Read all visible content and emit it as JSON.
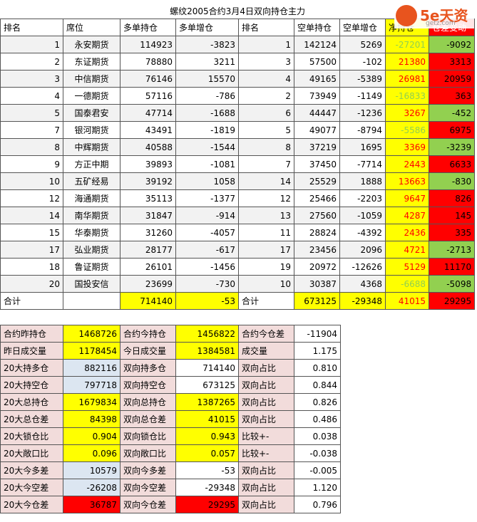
{
  "title": "螺纹2005合约3月4日双向持仓主力",
  "logo": {
    "brand": "5e天资",
    "site": "getz.com"
  },
  "header": [
    "排名",
    "席位",
    "多单持仓",
    "多单增仓",
    "排名",
    "空单持仓",
    "空单增仓",
    "净持仓",
    "仓差变动"
  ],
  "rows": [
    [
      "1",
      "永安期货",
      "114923",
      "-3823",
      "1",
      "142124",
      "5269",
      "-27201",
      "-9092"
    ],
    [
      "2",
      "东证期货",
      "78880",
      "3211",
      "3",
      "57500",
      "-102",
      "21380",
      "3313"
    ],
    [
      "3",
      "中信期货",
      "76146",
      "15570",
      "4",
      "49165",
      "-5389",
      "26981",
      "20959"
    ],
    [
      "4",
      "一德期货",
      "57116",
      "-786",
      "2",
      "73949",
      "-1149",
      "-16833",
      "363"
    ],
    [
      "5",
      "国泰君安",
      "47714",
      "-1688",
      "6",
      "44447",
      "-1236",
      "3267",
      "-452"
    ],
    [
      "7",
      "银河期货",
      "43491",
      "-1819",
      "5",
      "49077",
      "-8794",
      "-5586",
      "6975"
    ],
    [
      "8",
      "中辉期货",
      "40588",
      "-1544",
      "8",
      "37219",
      "1695",
      "3369",
      "-3239"
    ],
    [
      "9",
      "方正中期",
      "39893",
      "-1081",
      "7",
      "37450",
      "-7714",
      "2443",
      "6633"
    ],
    [
      "10",
      "五矿经易",
      "39192",
      "1058",
      "14",
      "25529",
      "1888",
      "13663",
      "-830"
    ],
    [
      "12",
      "海通期货",
      "35113",
      "-1377",
      "12",
      "25466",
      "-2203",
      "9647",
      "826"
    ],
    [
      "14",
      "南华期货",
      "31847",
      "-914",
      "13",
      "27560",
      "-1059",
      "4287",
      "145"
    ],
    [
      "15",
      "华泰期货",
      "31260",
      "-4057",
      "11",
      "28824",
      "-4392",
      "2436",
      "335"
    ],
    [
      "17",
      "弘业期货",
      "28177",
      "-617",
      "17",
      "23456",
      "2096",
      "4721",
      "-2713"
    ],
    [
      "18",
      "鲁证期货",
      "26101",
      "-1456",
      "19",
      "20972",
      "-12626",
      "5129",
      "11170"
    ],
    [
      "20",
      "国投安信",
      "23699",
      "-730",
      "10",
      "30387",
      "4368",
      "-6688",
      "-5098"
    ]
  ],
  "total": [
    "合计",
    "714140",
    "-53",
    "合计",
    "673125",
    "-29348",
    "41015",
    "29295"
  ],
  "summary": [
    [
      "合约昨持仓",
      "1468726",
      "合约今持仓",
      "1456822",
      "合约今仓差",
      "-11904"
    ],
    [
      "昨日成交量",
      "1178454",
      "今日成交量",
      "1384581",
      "成交量",
      "1.175"
    ],
    [
      "20大持多仓",
      "882116",
      "双向持多仓",
      "714140",
      "双向占比",
      "0.810"
    ],
    [
      "20大持空仓",
      "797718",
      "双向持空仓",
      "673125",
      "双向占比",
      "0.844"
    ],
    [
      "20大总持仓",
      "1679834",
      "双向总持仓",
      "1387265",
      "双向占比",
      "0.826"
    ],
    [
      "20大总仓差",
      "84398",
      "双向总仓差",
      "41015",
      "双向占比",
      "0.486"
    ],
    [
      "20大锁仓比",
      "0.904",
      "双向锁仓比",
      "0.943",
      "比较+-",
      "0.038"
    ],
    [
      "20大敞口比",
      "0.096",
      "双向敞口比",
      "0.057",
      "比较+-",
      "-0.038"
    ],
    [
      "20大今多差",
      "10579",
      "双向今多差",
      "-53",
      "双向占比",
      "-0.005"
    ],
    [
      "20大今空差",
      "-26208",
      "双向今空差",
      "-29348",
      "双向占比",
      "1.120"
    ],
    [
      "20大今仓差",
      "36787",
      "双向今仓差",
      "29295",
      "双向占比",
      "0.796"
    ]
  ]
}
